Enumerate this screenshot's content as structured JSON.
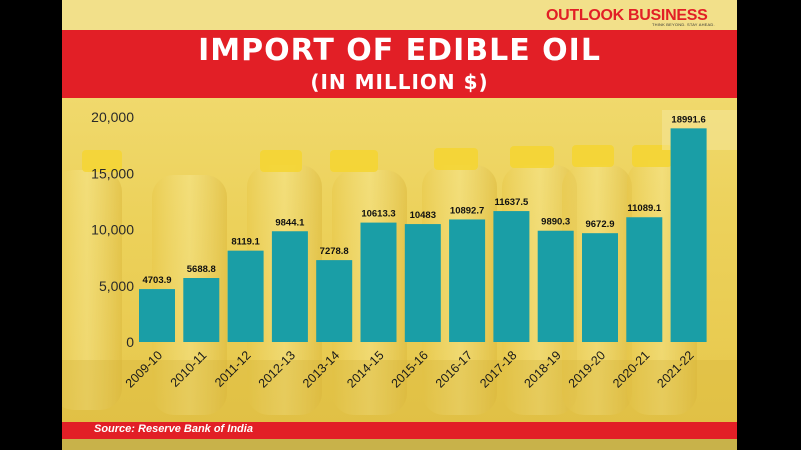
{
  "brand": {
    "name": "OUTLOOK BUSINESS",
    "tagline": "THINK BEYOND. STAY AHEAD."
  },
  "colors": {
    "red": "#e21f26",
    "bar": "#1a9ea6",
    "yellow": "#f1d860"
  },
  "source": "Source: Reserve Bank of India",
  "chart_data": {
    "type": "bar",
    "title": "IMPORT OF EDIBLE OIL",
    "subtitle": "(IN MILLION $)",
    "xlabel": "",
    "ylabel": "",
    "ylim": [
      0,
      20000
    ],
    "yticks": [
      0,
      5000,
      10000,
      15000,
      20000
    ],
    "ytick_labels": [
      "0",
      "5,000",
      "10,000",
      "15,000",
      "20,000"
    ],
    "grid": false,
    "categories": [
      "2009-10",
      "2010-11",
      "2011-12",
      "2012-13",
      "2013-14",
      "2014-15",
      "2015-16",
      "2016-17",
      "2017-18",
      "2018-19",
      "2019-20",
      "2020-21",
      "2021-22"
    ],
    "values": [
      4703.9,
      5688.8,
      8119.1,
      9844.1,
      7278.8,
      10613.3,
      10483,
      10892.7,
      11637.5,
      9890.3,
      9672.9,
      11089.1,
      18991.6
    ],
    "data_labels": [
      "4703.9",
      "5688.8",
      "8119.1",
      "9844.1",
      "7278.8",
      "10613.3",
      "10483",
      "10892.7",
      "11637.5",
      "9890.3",
      "9672.9",
      "11089.1",
      "18991.6"
    ]
  }
}
